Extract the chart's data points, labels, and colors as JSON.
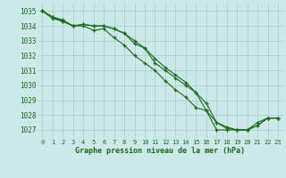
{
  "title": "Graphe pression niveau de la mer (hPa)",
  "background_color": "#cce8e8",
  "grid_color": "#aacccc",
  "line_color": "#1a6b1a",
  "xlim": [
    -0.5,
    23.5
  ],
  "ylim": [
    1026.4,
    1035.5
  ],
  "yticks": [
    1027,
    1028,
    1029,
    1030,
    1031,
    1032,
    1033,
    1034,
    1035
  ],
  "xticks": [
    0,
    1,
    2,
    3,
    4,
    5,
    6,
    7,
    8,
    9,
    10,
    11,
    12,
    13,
    14,
    15,
    16,
    17,
    18,
    19,
    20,
    21,
    22,
    23
  ],
  "series": [
    [
      1035.0,
      1034.6,
      1034.4,
      1034.0,
      1034.1,
      1034.0,
      1034.0,
      1033.8,
      1033.5,
      1032.8,
      1032.5,
      1031.5,
      1031.0,
      1030.5,
      1030.0,
      1029.5,
      1028.3,
      1027.0,
      1027.0,
      1027.0,
      1027.0,
      1027.5,
      1027.8,
      1027.8
    ],
    [
      1035.0,
      1034.5,
      1034.3,
      1034.0,
      1034.0,
      1033.7,
      1033.8,
      1033.2,
      1032.7,
      1032.0,
      1031.5,
      1031.0,
      1030.3,
      1029.7,
      1029.2,
      1028.5,
      1028.3,
      1027.5,
      1027.1,
      1027.0,
      1027.0,
      1027.3,
      1027.8,
      1027.8
    ],
    [
      1035.0,
      1034.6,
      1034.3,
      1034.0,
      1034.1,
      1034.0,
      1034.0,
      1033.8,
      1033.5,
      1033.0,
      1032.5,
      1031.8,
      1031.2,
      1030.7,
      1030.2,
      1029.5,
      1028.8,
      1027.5,
      1027.2,
      1027.0,
      1027.0,
      1027.3,
      1027.8,
      1027.8
    ]
  ]
}
